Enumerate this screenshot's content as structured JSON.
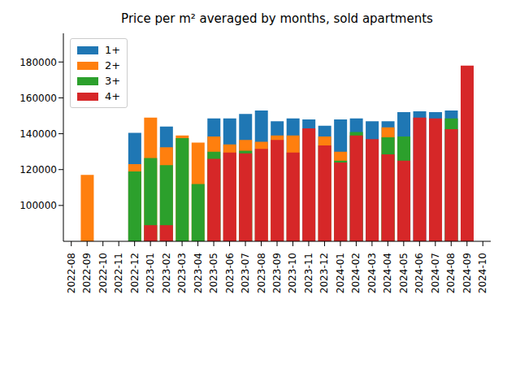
{
  "chart_data": {
    "type": "bar",
    "title": "Price per m² averaged by months, sold apartments",
    "categories": [
      "2022-08",
      "2022-09",
      "2022-10",
      "2022-11",
      "2022-12",
      "2023-01",
      "2023-02",
      "2023-03",
      "2023-04",
      "2023-05",
      "2023-06",
      "2023-07",
      "2023-08",
      "2023-09",
      "2023-10",
      "2023-11",
      "2023-12",
      "2024-01",
      "2024-02",
      "2024-03",
      "2024-04",
      "2024-05",
      "2024-06",
      "2024-07",
      "2024-08",
      "2024-09",
      "2024-10"
    ],
    "series": [
      {
        "name": "1+",
        "color": "#1f77b4",
        "values": [
          null,
          null,
          null,
          null,
          140500,
          null,
          144000,
          null,
          null,
          148500,
          148500,
          151000,
          153000,
          147000,
          148500,
          148000,
          144500,
          148000,
          148500,
          147000,
          147000,
          152000,
          152500,
          152000,
          153000,
          null,
          null
        ]
      },
      {
        "name": "2+",
        "color": "#ff7f0e",
        "values": [
          null,
          117000,
          null,
          null,
          123000,
          149000,
          132500,
          139000,
          135000,
          138500,
          134000,
          136500,
          135500,
          139000,
          139000,
          null,
          138500,
          130000,
          null,
          null,
          143500,
          null,
          null,
          null,
          null,
          null,
          null
        ]
      },
      {
        "name": "3+",
        "color": "#2ca02c",
        "values": [
          null,
          null,
          null,
          null,
          119000,
          126500,
          122500,
          137500,
          112000,
          130000,
          null,
          130500,
          null,
          null,
          null,
          null,
          null,
          125000,
          141000,
          null,
          138000,
          138500,
          null,
          null,
          148500,
          null,
          null
        ]
      },
      {
        "name": "4+",
        "color": "#d62728",
        "values": [
          null,
          null,
          null,
          null,
          null,
          89000,
          89000,
          null,
          null,
          126000,
          129500,
          129000,
          131500,
          136500,
          129500,
          143000,
          133500,
          124000,
          139000,
          137000,
          128500,
          125000,
          149000,
          148500,
          142500,
          178000,
          null
        ]
      }
    ],
    "ylim": [
      80000,
      196000
    ],
    "yticks": [
      100000,
      120000,
      140000,
      160000,
      180000
    ],
    "legend": "upper left"
  }
}
